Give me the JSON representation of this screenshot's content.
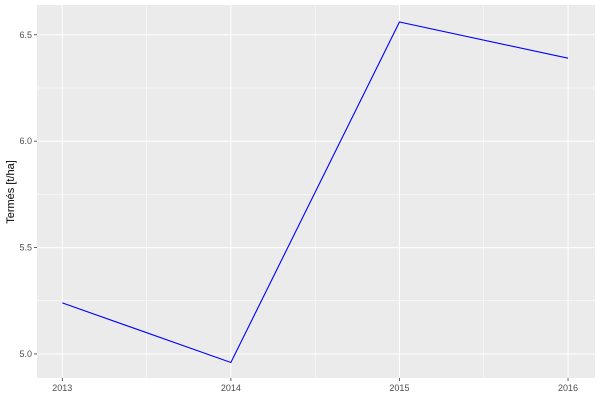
{
  "chart_data": {
    "type": "line",
    "title": "",
    "xlabel": "",
    "ylabel": "Termés [t/ha]",
    "x": [
      2013,
      2014,
      2015,
      2016
    ],
    "series": [
      {
        "values": [
          5.24,
          4.96,
          6.56,
          6.39
        ],
        "color": "#0000ff"
      }
    ],
    "xticks": [
      2013,
      2014,
      2015,
      2016
    ],
    "xtick_labels": [
      "2013",
      "2014",
      "2015",
      "2016"
    ],
    "yticks": [
      5.0,
      5.5,
      6.0,
      6.5
    ],
    "ytick_labels": [
      "5.0",
      "5.5",
      "6.0",
      "6.5"
    ],
    "xlim": [
      2012.85,
      2016.16
    ],
    "ylim": [
      4.887,
      6.64
    ],
    "grid": true,
    "panel_background": "#ebebeb"
  }
}
